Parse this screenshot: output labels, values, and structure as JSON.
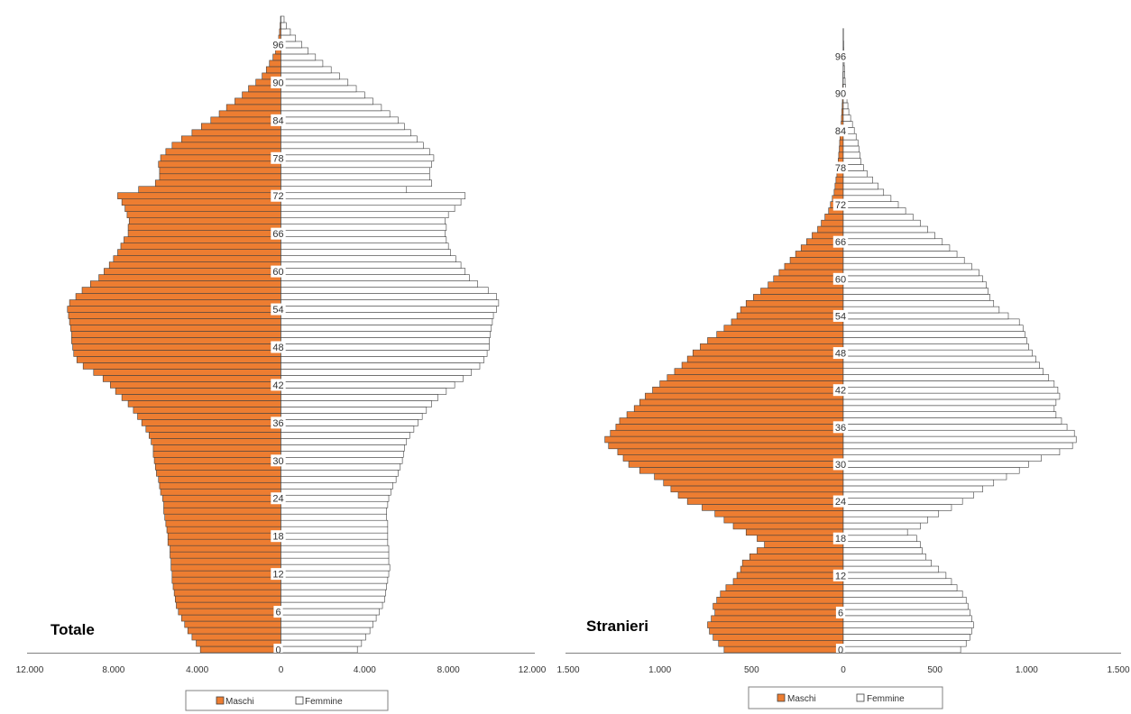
{
  "colors": {
    "males": "#ED7D31",
    "females": "#FFFFFF",
    "bar_stroke": "#404040",
    "axis": "#808080"
  },
  "chart_data": [
    {
      "type": "bar",
      "orientation": "horizontal-pyramid",
      "title": "Totale",
      "xlabel": "",
      "ylabel": "",
      "xlim": [
        -12000,
        12000
      ],
      "x_tick_labels": [
        "12.000",
        "8.000",
        "4.000",
        "0",
        "4.000",
        "8.000",
        "12.000"
      ],
      "y_tick_labels": [
        "0",
        "6",
        "12",
        "18",
        "24",
        "30",
        "36",
        "42",
        "48",
        "54",
        "60",
        "66",
        "72",
        "78",
        "84",
        "90",
        "96"
      ],
      "categories_note": "ages 0 to 100, one bar per year",
      "grid": false,
      "legend_position": "bottom",
      "series": [
        {
          "name": "Maschi",
          "values": [
            3850,
            4050,
            4250,
            4450,
            4600,
            4750,
            4900,
            5000,
            5050,
            5100,
            5150,
            5200,
            5200,
            5250,
            5250,
            5300,
            5300,
            5400,
            5400,
            5450,
            5500,
            5550,
            5600,
            5600,
            5650,
            5750,
            5800,
            5850,
            5950,
            6000,
            6050,
            6100,
            6100,
            6200,
            6300,
            6450,
            6650,
            6850,
            7050,
            7300,
            7600,
            7900,
            8150,
            8500,
            8950,
            9450,
            9750,
            9900,
            9950,
            10000,
            10000,
            10050,
            10100,
            10150,
            10200,
            10100,
            9800,
            9500,
            9100,
            8700,
            8450,
            8200,
            8000,
            7800,
            7650,
            7500,
            7300,
            7300,
            7250,
            7350,
            7450,
            7600,
            7800,
            6800,
            6000,
            5800,
            5800,
            5850,
            5750,
            5500,
            5200,
            4750,
            4250,
            3800,
            3350,
            2950,
            2600,
            2200,
            1850,
            1550,
            1200,
            900,
            700,
            550,
            380,
            260,
            180,
            110,
            70,
            40,
            20
          ]
        },
        {
          "name": "Femmine",
          "values": [
            3650,
            3850,
            4050,
            4250,
            4400,
            4550,
            4700,
            4850,
            4950,
            5000,
            5050,
            5100,
            5150,
            5200,
            5150,
            5150,
            5150,
            5100,
            5100,
            5100,
            5100,
            5050,
            5050,
            5100,
            5150,
            5250,
            5350,
            5500,
            5600,
            5700,
            5800,
            5850,
            5900,
            6000,
            6150,
            6350,
            6550,
            6750,
            6950,
            7200,
            7500,
            7900,
            8300,
            8700,
            9100,
            9500,
            9700,
            9850,
            9950,
            9950,
            10000,
            10050,
            10100,
            10150,
            10300,
            10400,
            10300,
            9900,
            9400,
            9000,
            8800,
            8600,
            8350,
            8100,
            8000,
            7900,
            7850,
            7900,
            7850,
            8000,
            8300,
            8600,
            8800,
            6000,
            7200,
            7100,
            7100,
            7200,
            7300,
            7100,
            6800,
            6500,
            6200,
            5900,
            5600,
            5200,
            4800,
            4400,
            4000,
            3600,
            3200,
            2800,
            2400,
            2000,
            1650,
            1300,
            1000,
            700,
            450,
            250,
            150
          ]
        }
      ]
    },
    {
      "type": "bar",
      "orientation": "horizontal-pyramid",
      "title": "Stranieri",
      "xlabel": "",
      "ylabel": "",
      "xlim": [
        -1500,
        1500
      ],
      "x_tick_labels": [
        "1.500",
        "1.000",
        "500",
        "0",
        "500",
        "1.000",
        "1.500"
      ],
      "y_tick_labels": [
        "0",
        "6",
        "12",
        "18",
        "24",
        "30",
        "36",
        "42",
        "48",
        "54",
        "60",
        "66",
        "72",
        "78",
        "84",
        "90",
        "96"
      ],
      "categories_note": "ages 0 to 100, one bar per year",
      "grid": false,
      "legend_position": "bottom",
      "series": [
        {
          "name": "Maschi",
          "values": [
            650,
            680,
            710,
            730,
            740,
            720,
            700,
            710,
            690,
            670,
            640,
            600,
            580,
            560,
            550,
            510,
            470,
            430,
            470,
            530,
            600,
            650,
            700,
            770,
            850,
            900,
            940,
            980,
            1030,
            1110,
            1170,
            1200,
            1230,
            1280,
            1300,
            1270,
            1240,
            1220,
            1180,
            1140,
            1110,
            1080,
            1040,
            1000,
            960,
            920,
            880,
            850,
            820,
            780,
            740,
            690,
            650,
            610,
            580,
            560,
            530,
            490,
            450,
            410,
            380,
            350,
            320,
            290,
            260,
            230,
            200,
            170,
            140,
            120,
            100,
            80,
            70,
            60,
            50,
            45,
            40,
            35,
            30,
            28,
            25,
            22,
            20,
            18,
            15,
            12,
            10,
            8,
            6,
            5,
            4,
            3,
            2,
            2,
            1,
            1,
            1,
            1,
            1,
            1,
            1,
            0,
            0
          ]
        },
        {
          "name": "Femmine",
          "values": [
            640,
            670,
            690,
            700,
            710,
            700,
            690,
            680,
            670,
            650,
            620,
            590,
            560,
            520,
            480,
            450,
            430,
            420,
            400,
            350,
            420,
            460,
            520,
            590,
            650,
            710,
            760,
            820,
            890,
            960,
            1010,
            1080,
            1180,
            1250,
            1270,
            1260,
            1220,
            1190,
            1160,
            1150,
            1160,
            1180,
            1170,
            1150,
            1120,
            1090,
            1070,
            1050,
            1030,
            1010,
            1000,
            990,
            980,
            960,
            900,
            850,
            820,
            800,
            790,
            780,
            760,
            740,
            700,
            660,
            620,
            580,
            540,
            500,
            460,
            420,
            380,
            340,
            300,
            260,
            220,
            190,
            160,
            130,
            110,
            95,
            90,
            85,
            80,
            70,
            60,
            50,
            40,
            30,
            25,
            20,
            15,
            12,
            10,
            8,
            6,
            5,
            4,
            3,
            2,
            1,
            1
          ]
        }
      ]
    }
  ]
}
